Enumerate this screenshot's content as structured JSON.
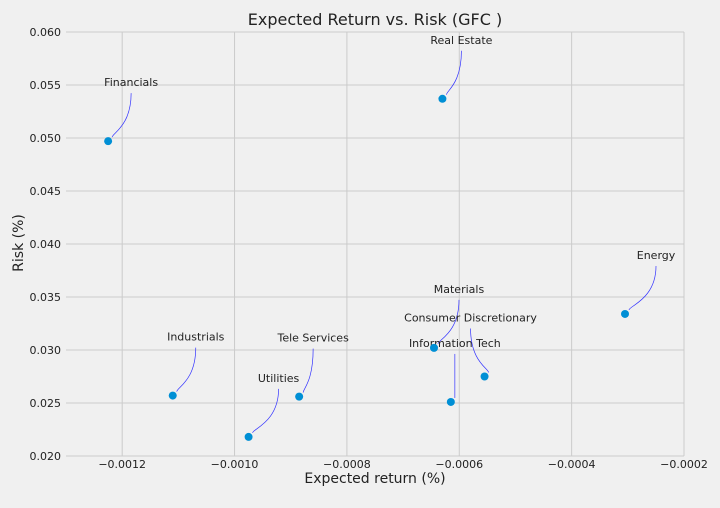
{
  "chart_data": {
    "type": "scatter",
    "title": "Expected Return vs. Risk (GFC )",
    "xlabel": "Expected return (%)",
    "ylabel": "Risk (%)",
    "xlim": [
      -0.0013,
      -0.0002
    ],
    "ylim": [
      0.02,
      0.06
    ],
    "x_ticks": [
      -0.0012,
      -0.001,
      -0.0008,
      -0.0006,
      -0.0004,
      -0.0002
    ],
    "x_tick_labels": [
      "−0.0012",
      "−0.0010",
      "−0.0008",
      "−0.0006",
      "−0.0004",
      "−0.0002"
    ],
    "y_ticks": [
      0.02,
      0.025,
      0.03,
      0.035,
      0.04,
      0.045,
      0.05,
      0.055,
      0.06
    ],
    "y_tick_labels": [
      "0.020",
      "0.025",
      "0.030",
      "0.035",
      "0.040",
      "0.045",
      "0.050",
      "0.055",
      "0.060"
    ],
    "grid": true,
    "point_color": "#008fd5",
    "annotation_line_color": "#3333ff",
    "points": [
      {
        "label": "Real Estate",
        "x": -0.00063,
        "y": 0.0537
      },
      {
        "label": "Financials",
        "x": -0.001225,
        "y": 0.0497
      },
      {
        "label": "Energy",
        "x": -0.000305,
        "y": 0.0334
      },
      {
        "label": "Materials",
        "x": -0.000645,
        "y": 0.0302
      },
      {
        "label": "Consumer Discretionary",
        "x": -0.000555,
        "y": 0.0275
      },
      {
        "label": "Information Tech",
        "x": -0.000615,
        "y": 0.0251
      },
      {
        "label": "Industrials",
        "x": -0.00111,
        "y": 0.0257
      },
      {
        "label": "Tele Services",
        "x": -0.000885,
        "y": 0.0256
      },
      {
        "label": "Utilities",
        "x": -0.000975,
        "y": 0.0218
      }
    ]
  }
}
